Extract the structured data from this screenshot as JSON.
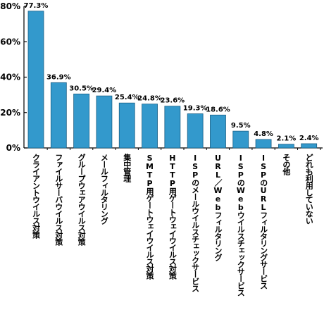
{
  "chart_data": {
    "type": "bar",
    "categories": [
      "クライアントウイルス対策",
      "ファイルサーバウイルス対策",
      "グループウェアウイルス対策",
      "メールフィルタリング",
      "集中管理",
      "SMTP用ゲートウェイウイルス対策",
      "HTTP用ゲートウェイウイルス対策",
      "ISPのメールウイルスチェックサービス",
      "URL／Webフィルタリング",
      "ISPのWebウイルスチェックサービス",
      "ISPのURLフィルタリングサービス",
      "その他",
      "どれも利用していない"
    ],
    "values": [
      77.3,
      36.9,
      30.5,
      29.4,
      25.4,
      24.8,
      23.6,
      19.3,
      18.6,
      9.5,
      4.8,
      2.1,
      2.4
    ],
    "data_labels": [
      "77.3%",
      "36.9%",
      "30.5%",
      "29.4%",
      "25.4%",
      "24.8%",
      "23.6%",
      "19.3%",
      "18.6%",
      "9.5%",
      "4.8%",
      "2.1%",
      "2.4%"
    ],
    "yticks": [
      0,
      20,
      40,
      60,
      80
    ],
    "ytick_labels": [
      "0%",
      "20%",
      "40%",
      "60%",
      "80%"
    ],
    "ylim": [
      0,
      80
    ],
    "grid": false,
    "bar_color": "#3399cc",
    "title": "",
    "xlabel": "",
    "ylabel": ""
  }
}
